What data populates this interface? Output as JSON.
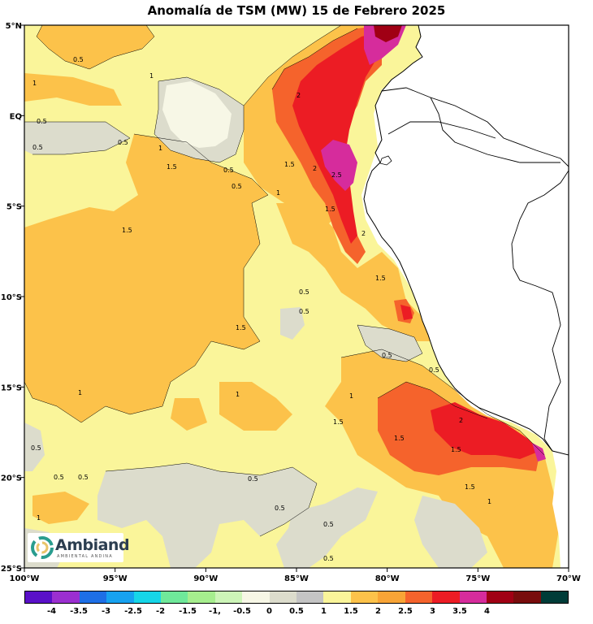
{
  "title": "Anomalía de TSM (MW) 15 de Febrero 2025",
  "map": {
    "lon_range": [
      -100,
      -70
    ],
    "lat_range": [
      -25,
      5
    ],
    "x_ticks": [
      {
        "lon": -100,
        "label": "100°W"
      },
      {
        "lon": -95,
        "label": "95°W"
      },
      {
        "lon": -90,
        "label": "90°W"
      },
      {
        "lon": -85,
        "label": "85°W"
      },
      {
        "lon": -80,
        "label": "80°W"
      },
      {
        "lon": -75,
        "label": "75°W"
      },
      {
        "lon": -70,
        "label": "70°W"
      }
    ],
    "y_ticks": [
      {
        "lat": 5,
        "label": "5°N"
      },
      {
        "lat": 0,
        "label": "EQ"
      },
      {
        "lat": -5,
        "label": "5°S"
      },
      {
        "lat": -10,
        "label": "10°S"
      },
      {
        "lat": -15,
        "label": "15°S"
      },
      {
        "lat": -20,
        "label": "20°S"
      },
      {
        "lat": -25,
        "label": "25°S"
      }
    ],
    "contour_labels": [
      "0.5",
      "1",
      "1.5",
      "2",
      "2.5"
    ]
  },
  "colorbar": {
    "colors": [
      "#5a10c8",
      "#9b2fd0",
      "#1e6fe6",
      "#17a2f0",
      "#16d6e8",
      "#6fe89a",
      "#a6ee8e",
      "#cdf5b8",
      "#f7f7e6",
      "#dcdccc",
      "#c4c4c4",
      "#faf59a",
      "#fcc24a",
      "#f8a436",
      "#f5632c",
      "#ec1c24",
      "#d62c9c",
      "#a00014",
      "#780c0c",
      "#003c38"
    ],
    "labels": [
      "-4",
      "-3.5",
      "-3",
      "-2.5",
      "-2",
      "-1.5",
      "-1,",
      "-0.5",
      "0",
      "0.5",
      "1",
      "1.5",
      "2",
      "2.5",
      "3",
      "3.5",
      "4"
    ]
  },
  "logo": {
    "name": "Ambiand",
    "tagline": "AMBIENTAL ANDINA"
  }
}
